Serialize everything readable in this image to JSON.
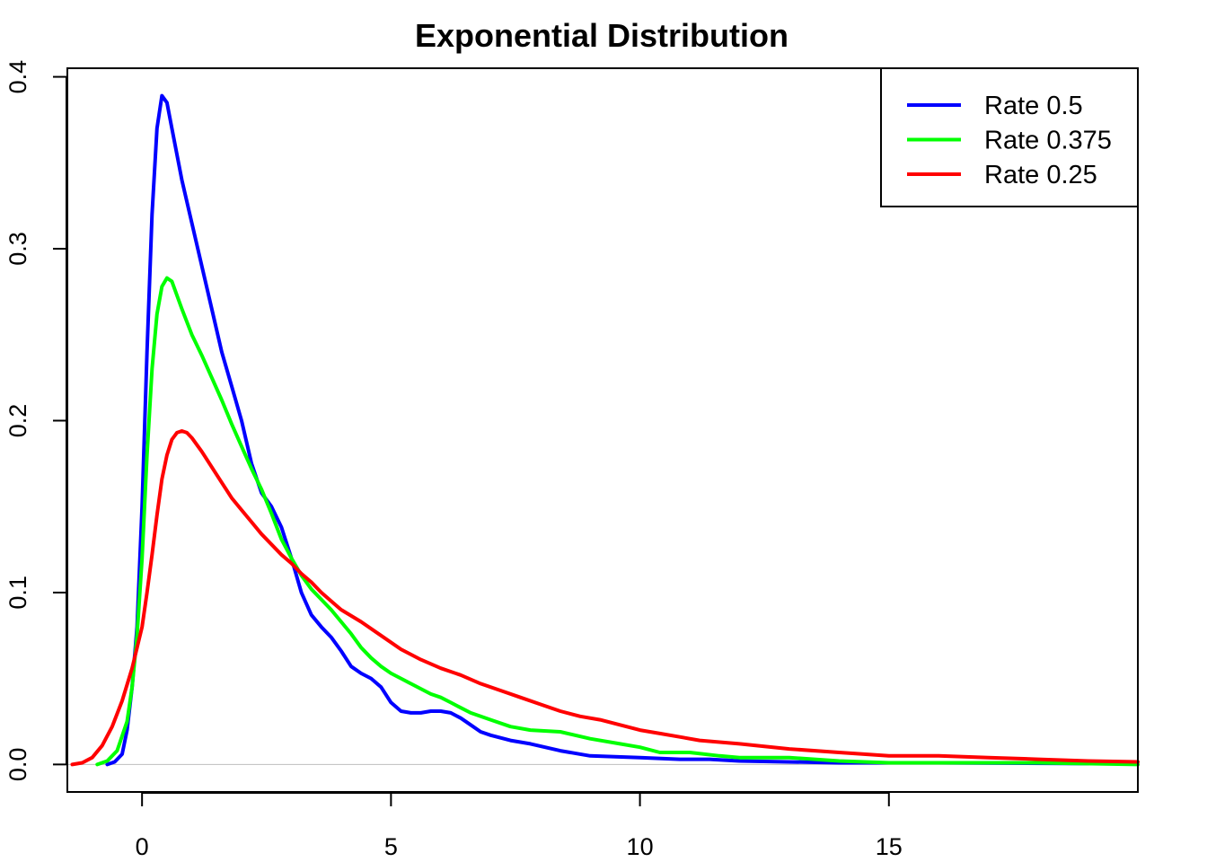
{
  "chart_data": {
    "type": "line",
    "title": "Exponential Distribution",
    "xlabel": "",
    "ylabel": "",
    "xlim": [
      -1.5,
      20
    ],
    "ylim": [
      -0.016,
      0.405
    ],
    "x_ticks": [
      0,
      5,
      10,
      15
    ],
    "y_ticks": [
      0.0,
      0.1,
      0.2,
      0.3,
      0.4
    ],
    "x_tick_labels": [
      "0",
      "5",
      "10",
      "15"
    ],
    "y_tick_labels": [
      "0.0",
      "0.1",
      "0.2",
      "0.3",
      "0.4"
    ],
    "grid": false,
    "baseline_y": 0,
    "baseline_color": "#BEBEBE",
    "legend_position": "top-right",
    "series": [
      {
        "name": "Rate 0.5",
        "color": "#0000FF",
        "points": [
          [
            -0.7,
            0.0
          ],
          [
            -0.55,
            0.0015
          ],
          [
            -0.4,
            0.006
          ],
          [
            -0.3,
            0.02
          ],
          [
            -0.2,
            0.045
          ],
          [
            -0.1,
            0.08
          ],
          [
            0.0,
            0.15
          ],
          [
            0.1,
            0.24
          ],
          [
            0.2,
            0.32
          ],
          [
            0.3,
            0.37
          ],
          [
            0.4,
            0.389
          ],
          [
            0.5,
            0.385
          ],
          [
            0.6,
            0.37
          ],
          [
            0.8,
            0.34
          ],
          [
            1.0,
            0.315
          ],
          [
            1.2,
            0.29
          ],
          [
            1.4,
            0.265
          ],
          [
            1.6,
            0.24
          ],
          [
            1.8,
            0.22
          ],
          [
            2.0,
            0.2
          ],
          [
            2.2,
            0.175
          ],
          [
            2.4,
            0.158
          ],
          [
            2.6,
            0.15
          ],
          [
            2.8,
            0.138
          ],
          [
            3.0,
            0.12
          ],
          [
            3.2,
            0.1
          ],
          [
            3.4,
            0.087
          ],
          [
            3.6,
            0.08
          ],
          [
            3.8,
            0.074
          ],
          [
            4.0,
            0.066
          ],
          [
            4.2,
            0.057
          ],
          [
            4.4,
            0.053
          ],
          [
            4.6,
            0.05
          ],
          [
            4.8,
            0.045
          ],
          [
            5.0,
            0.036
          ],
          [
            5.2,
            0.031
          ],
          [
            5.4,
            0.03
          ],
          [
            5.6,
            0.03
          ],
          [
            5.8,
            0.031
          ],
          [
            6.0,
            0.031
          ],
          [
            6.2,
            0.03
          ],
          [
            6.4,
            0.027
          ],
          [
            6.6,
            0.023
          ],
          [
            6.8,
            0.019
          ],
          [
            7.0,
            0.017
          ],
          [
            7.4,
            0.014
          ],
          [
            7.8,
            0.012
          ],
          [
            8.4,
            0.008
          ],
          [
            9.0,
            0.005
          ],
          [
            10.0,
            0.004
          ],
          [
            10.8,
            0.003
          ],
          [
            11.4,
            0.003
          ],
          [
            12.0,
            0.002
          ],
          [
            14.0,
            0.001
          ],
          [
            16.0,
            0.001
          ],
          [
            19.0,
            0.0005
          ]
        ]
      },
      {
        "name": "Rate 0.375",
        "color": "#00FF00",
        "points": [
          [
            -0.9,
            0.0
          ],
          [
            -0.7,
            0.002
          ],
          [
            -0.5,
            0.008
          ],
          [
            -0.3,
            0.025
          ],
          [
            -0.2,
            0.045
          ],
          [
            -0.1,
            0.075
          ],
          [
            0.0,
            0.12
          ],
          [
            0.1,
            0.18
          ],
          [
            0.2,
            0.23
          ],
          [
            0.3,
            0.262
          ],
          [
            0.4,
            0.278
          ],
          [
            0.5,
            0.283
          ],
          [
            0.6,
            0.281
          ],
          [
            0.8,
            0.265
          ],
          [
            1.0,
            0.25
          ],
          [
            1.2,
            0.238
          ],
          [
            1.4,
            0.225
          ],
          [
            1.6,
            0.212
          ],
          [
            1.8,
            0.198
          ],
          [
            2.0,
            0.185
          ],
          [
            2.2,
            0.172
          ],
          [
            2.4,
            0.16
          ],
          [
            2.6,
            0.146
          ],
          [
            2.8,
            0.131
          ],
          [
            3.0,
            0.12
          ],
          [
            3.2,
            0.11
          ],
          [
            3.4,
            0.102
          ],
          [
            3.6,
            0.096
          ],
          [
            3.8,
            0.09
          ],
          [
            4.0,
            0.083
          ],
          [
            4.2,
            0.076
          ],
          [
            4.4,
            0.068
          ],
          [
            4.6,
            0.062
          ],
          [
            4.8,
            0.057
          ],
          [
            5.0,
            0.053
          ],
          [
            5.2,
            0.05
          ],
          [
            5.4,
            0.047
          ],
          [
            5.6,
            0.044
          ],
          [
            5.8,
            0.041
          ],
          [
            6.0,
            0.039
          ],
          [
            6.2,
            0.036
          ],
          [
            6.4,
            0.033
          ],
          [
            6.6,
            0.03
          ],
          [
            6.8,
            0.028
          ],
          [
            7.0,
            0.026
          ],
          [
            7.4,
            0.022
          ],
          [
            7.8,
            0.02
          ],
          [
            8.4,
            0.019
          ],
          [
            9.0,
            0.015
          ],
          [
            9.6,
            0.012
          ],
          [
            10.0,
            0.01
          ],
          [
            10.4,
            0.007
          ],
          [
            11.0,
            0.007
          ],
          [
            11.6,
            0.005
          ],
          [
            12.0,
            0.004
          ],
          [
            13.0,
            0.004
          ],
          [
            14.0,
            0.002
          ],
          [
            15.0,
            0.001
          ],
          [
            16.0,
            0.001
          ],
          [
            17.0,
            0.001
          ],
          [
            18.0,
            0.001
          ],
          [
            20.0,
            0.0
          ]
        ]
      },
      {
        "name": "Rate 0.25",
        "color": "#FF0000",
        "points": [
          [
            -1.4,
            0.0
          ],
          [
            -1.2,
            0.001
          ],
          [
            -1.0,
            0.004
          ],
          [
            -0.8,
            0.011
          ],
          [
            -0.6,
            0.022
          ],
          [
            -0.4,
            0.037
          ],
          [
            -0.2,
            0.056
          ],
          [
            0.0,
            0.08
          ],
          [
            0.1,
            0.1
          ],
          [
            0.2,
            0.122
          ],
          [
            0.3,
            0.145
          ],
          [
            0.4,
            0.166
          ],
          [
            0.5,
            0.18
          ],
          [
            0.6,
            0.189
          ],
          [
            0.7,
            0.193
          ],
          [
            0.8,
            0.194
          ],
          [
            0.9,
            0.193
          ],
          [
            1.0,
            0.19
          ],
          [
            1.2,
            0.182
          ],
          [
            1.4,
            0.173
          ],
          [
            1.6,
            0.164
          ],
          [
            1.8,
            0.155
          ],
          [
            2.0,
            0.148
          ],
          [
            2.2,
            0.141
          ],
          [
            2.4,
            0.134
          ],
          [
            2.6,
            0.128
          ],
          [
            2.8,
            0.122
          ],
          [
            3.0,
            0.117
          ],
          [
            3.2,
            0.111
          ],
          [
            3.4,
            0.106
          ],
          [
            3.6,
            0.1
          ],
          [
            3.8,
            0.095
          ],
          [
            4.0,
            0.09
          ],
          [
            4.4,
            0.083
          ],
          [
            4.8,
            0.075
          ],
          [
            5.2,
            0.067
          ],
          [
            5.6,
            0.061
          ],
          [
            6.0,
            0.056
          ],
          [
            6.4,
            0.052
          ],
          [
            6.8,
            0.047
          ],
          [
            7.2,
            0.043
          ],
          [
            7.6,
            0.039
          ],
          [
            8.0,
            0.035
          ],
          [
            8.4,
            0.031
          ],
          [
            8.8,
            0.028
          ],
          [
            9.2,
            0.026
          ],
          [
            9.6,
            0.023
          ],
          [
            10.0,
            0.02
          ],
          [
            10.4,
            0.018
          ],
          [
            10.8,
            0.016
          ],
          [
            11.2,
            0.014
          ],
          [
            11.6,
            0.013
          ],
          [
            12.0,
            0.012
          ],
          [
            13.0,
            0.009
          ],
          [
            14.0,
            0.007
          ],
          [
            15.0,
            0.005
          ],
          [
            16.0,
            0.005
          ],
          [
            17.0,
            0.004
          ],
          [
            18.0,
            0.003
          ],
          [
            19.0,
            0.002
          ],
          [
            20.0,
            0.0015
          ]
        ]
      }
    ]
  }
}
